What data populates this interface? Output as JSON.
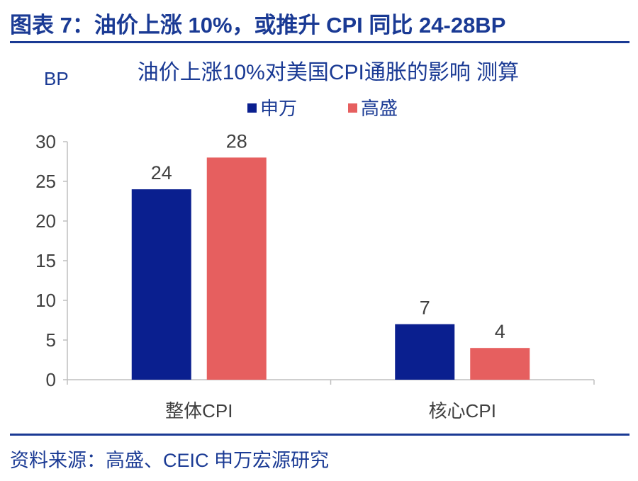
{
  "figure": {
    "title": "图表 7：油价上涨 10%，或推升 CPI 同比 24-28BP",
    "source": "资料来源：高盛、CEIC 申万宏源研究"
  },
  "chart_data": {
    "type": "bar",
    "title": "油价上涨10%对美国CPI通胀的影响 测算",
    "ylabel": "BP",
    "categories": [
      "整体CPI",
      "核心CPI"
    ],
    "series": [
      {
        "name": "申万",
        "values": [
          24,
          7
        ],
        "color": "#0a1f8f"
      },
      {
        "name": "高盛",
        "values": [
          28,
          4
        ],
        "color": "#e65f5f"
      }
    ],
    "ylim": [
      0,
      30
    ],
    "yticks": [
      0,
      5,
      10,
      15,
      20,
      25,
      30
    ],
    "grid": false,
    "legend": "top-center",
    "data_labels": true
  }
}
